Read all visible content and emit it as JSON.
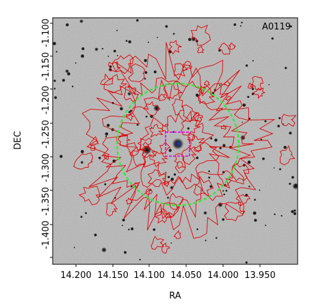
{
  "figure": {
    "object_label": "A0119",
    "x_axis_label": "RA",
    "y_axis_label": "DEC",
    "x_ticks": [
      "14.200",
      "14.150",
      "14.100",
      "14.050",
      "14.000",
      "13.950"
    ],
    "y_ticks": [
      "-1.100",
      "-1.150",
      "-1.200",
      "-1.250",
      "-1.300",
      "-1.350",
      "-1.400"
    ],
    "circle_color": "#2eea2e",
    "box_color": "#e619e6",
    "contour_color": "#e00000"
  }
}
